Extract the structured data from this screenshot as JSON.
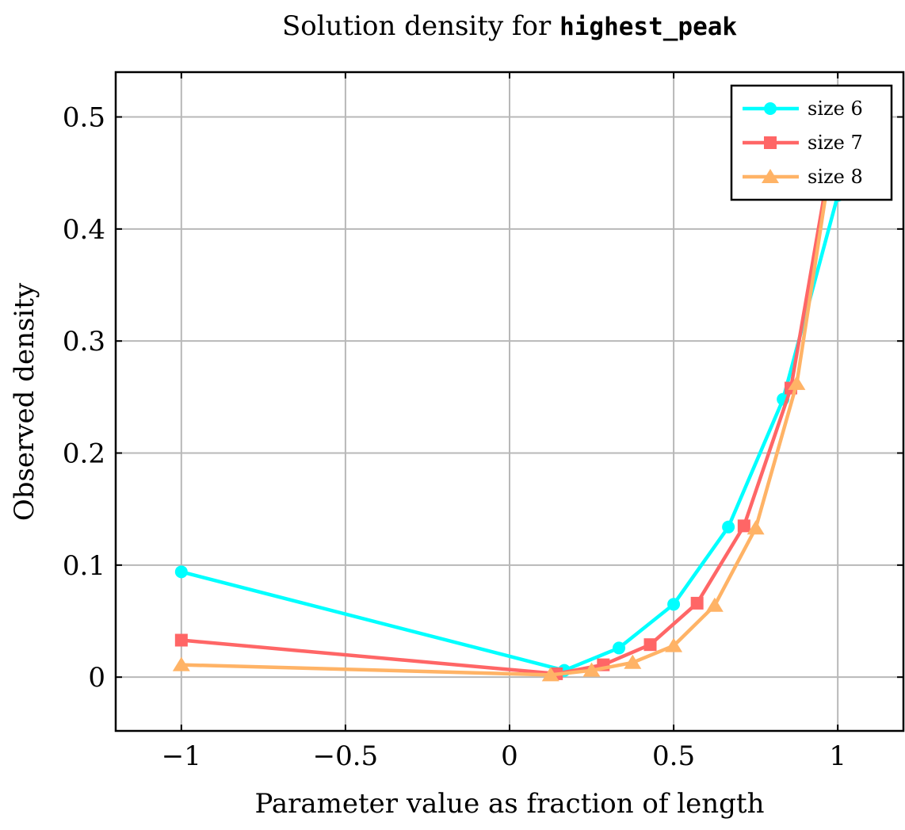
{
  "chart_data": {
    "type": "line",
    "title_prefix": "Solution density for ",
    "title_code": "highest_peak",
    "xlabel": "Parameter value as fraction of length",
    "ylabel": "Observed density",
    "xlim": [
      -1.2,
      1.2
    ],
    "ylim": [
      -0.048,
      0.54
    ],
    "xticks": [
      -1,
      -0.5,
      0,
      0.5,
      1
    ],
    "xtick_labels": [
      "−1",
      "−0.5",
      "0",
      "0.5",
      "1"
    ],
    "yticks": [
      0,
      0.1,
      0.2,
      0.3,
      0.4,
      0.5
    ],
    "ytick_labels": [
      "0",
      "0.1",
      "0.2",
      "0.3",
      "0.4",
      "0.5"
    ],
    "grid": true,
    "legend_position": "top-right",
    "series": [
      {
        "name": "size 6",
        "color": "#00ffff",
        "marker": "circle",
        "x": [
          -1,
          0.1667,
          0.3333,
          0.5,
          0.6667,
          0.8333,
          1.0
        ],
        "y": [
          0.094,
          0.006,
          0.026,
          0.065,
          0.134,
          0.248,
          0.43
        ]
      },
      {
        "name": "size 7",
        "color": "#ff6666",
        "marker": "square",
        "x": [
          -1,
          0.1429,
          0.2857,
          0.4286,
          0.5714,
          0.7143,
          0.8571,
          1.0
        ],
        "y": [
          0.033,
          0.003,
          0.011,
          0.029,
          0.066,
          0.135,
          0.258,
          0.5
        ]
      },
      {
        "name": "size 8",
        "color": "#ffb366",
        "marker": "triangle",
        "x": [
          -1,
          0.125,
          0.25,
          0.375,
          0.5,
          0.625,
          0.75,
          0.875,
          1.0
        ],
        "y": [
          0.011,
          0.002,
          0.006,
          0.013,
          0.028,
          0.064,
          0.133,
          0.262,
          0.5
        ]
      }
    ]
  }
}
